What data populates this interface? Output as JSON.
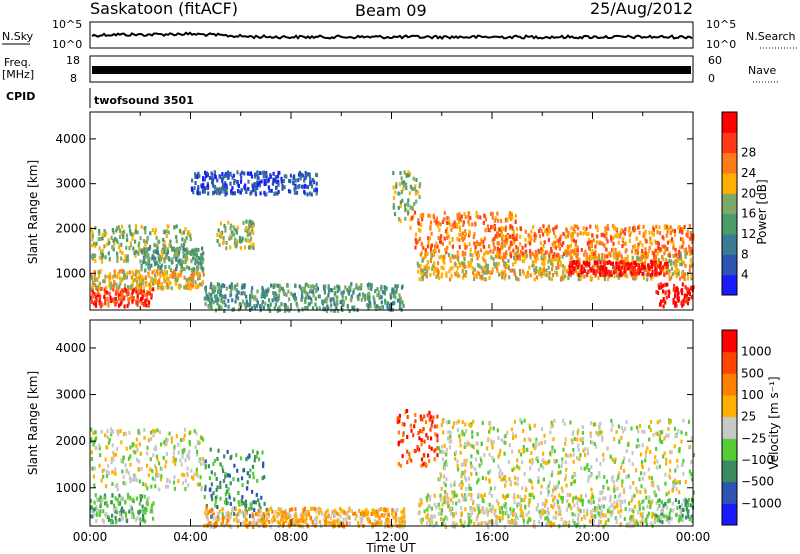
{
  "header": {
    "title": "Saskatoon (fitACF)",
    "beam": "Beam 09",
    "date": "25/Aug/2012"
  },
  "strip_labels": {
    "nsky": "N.Sky",
    "nsearch": "N.Search",
    "freq_top": "Freq.",
    "freq_unit": "[MHz]",
    "nave": "Nave",
    "cpid": "CPID",
    "cpid_value": "twofsound 3501",
    "noise_left_ticks": [
      "10^5",
      "10^0"
    ],
    "noise_right_ticks": [
      "10^5",
      "10^0"
    ],
    "freq_ticks": [
      "18",
      "8"
    ],
    "nave_ticks": [
      "60",
      "0"
    ]
  },
  "chart_data": [
    {
      "type": "heatmap",
      "name": "power-panel",
      "ylabel": "Slant Range [km]",
      "xlabel": "",
      "yticks": [
        "1000",
        "2000",
        "3000",
        "4000"
      ],
      "ylim": [
        180,
        4600
      ],
      "x_range_hours": [
        0,
        24
      ],
      "colorbar_label": "Power [dB]",
      "colorbar_ticks": [
        "4",
        "8",
        "12",
        "16",
        "20",
        "24",
        "28"
      ],
      "colors": [
        "#1a1aff",
        "#2b55b0",
        "#3a7a95",
        "#4a9a6a",
        "#7aaa66",
        "#ffb000",
        "#ff7a1a",
        "#ff3a1a",
        "#ff0000"
      ],
      "echo_regions": [
        {
          "t0": 0.0,
          "t1": 2.5,
          "r0": 300,
          "r1": 700,
          "level": 7
        },
        {
          "t0": 0.0,
          "t1": 4.5,
          "r0": 700,
          "r1": 1100,
          "level": 5
        },
        {
          "t0": 0.0,
          "t1": 4.0,
          "r0": 1300,
          "r1": 2100,
          "level": 4
        },
        {
          "t0": 2.0,
          "t1": 4.5,
          "r0": 1100,
          "r1": 1600,
          "level": 3
        },
        {
          "t0": 5.0,
          "t1": 6.5,
          "r0": 1600,
          "r1": 2200,
          "level": 4
        },
        {
          "t0": 4.0,
          "t1": 9.0,
          "r0": 2800,
          "r1": 3300,
          "level": 1
        },
        {
          "t0": 4.5,
          "t1": 12.5,
          "r0": 200,
          "r1": 800,
          "level": 3
        },
        {
          "t0": 12.0,
          "t1": 13.2,
          "r0": 2200,
          "r1": 3300,
          "level": 4
        },
        {
          "t0": 12.7,
          "t1": 17.0,
          "r0": 1500,
          "r1": 2400,
          "level": 6
        },
        {
          "t0": 13.0,
          "t1": 24.0,
          "r0": 900,
          "r1": 1500,
          "level": 5
        },
        {
          "t0": 16.0,
          "t1": 24.0,
          "r0": 1400,
          "r1": 2100,
          "level": 6
        },
        {
          "t0": 19.0,
          "t1": 23.0,
          "r0": 1000,
          "r1": 1300,
          "level": 8
        },
        {
          "t0": 22.5,
          "t1": 24.0,
          "r0": 300,
          "r1": 800,
          "level": 8
        }
      ]
    },
    {
      "type": "heatmap",
      "name": "velocity-panel",
      "ylabel": "Slant Range [km]",
      "xlabel": "Time UT",
      "yticks": [
        "1000",
        "2000",
        "3000",
        "4000"
      ],
      "ylim": [
        180,
        4600
      ],
      "x_range_hours": [
        0,
        24
      ],
      "xticks": [
        "00:00",
        "04:00",
        "08:00",
        "12:00",
        "16:00",
        "20:00",
        "00:00"
      ],
      "colorbar_label": "Velocity [m s⁻¹]",
      "colorbar_ticks": [
        "1000",
        "500",
        "100",
        "25",
        "−25",
        "−100",
        "−500",
        "−1000"
      ],
      "colors": [
        "#1a1aff",
        "#2b55b0",
        "#3a8a60",
        "#55cc33",
        "#c8c8c8",
        "#ffb000",
        "#ff8000",
        "#ff4400",
        "#ff0000"
      ],
      "echo_regions": [
        {
          "t0": 0.0,
          "t1": 2.5,
          "r0": 300,
          "r1": 900,
          "level": 3
        },
        {
          "t0": 0.0,
          "t1": 4.5,
          "r0": 1000,
          "r1": 2300,
          "level": 4
        },
        {
          "t0": 4.5,
          "t1": 7.0,
          "r0": 400,
          "r1": 1900,
          "level": 2
        },
        {
          "t0": 4.5,
          "t1": 12.5,
          "r0": 200,
          "r1": 600,
          "level": 5
        },
        {
          "t0": 12.2,
          "t1": 13.8,
          "r0": 1500,
          "r1": 2700,
          "level": 7
        },
        {
          "t0": 13.8,
          "t1": 24.0,
          "r0": 900,
          "r1": 2500,
          "level": 4
        },
        {
          "t0": 13.0,
          "t1": 22.5,
          "r0": 200,
          "r1": 900,
          "level": 4
        },
        {
          "t0": 22.5,
          "t1": 24.0,
          "r0": 300,
          "r1": 800,
          "level": 3
        }
      ]
    }
  ]
}
